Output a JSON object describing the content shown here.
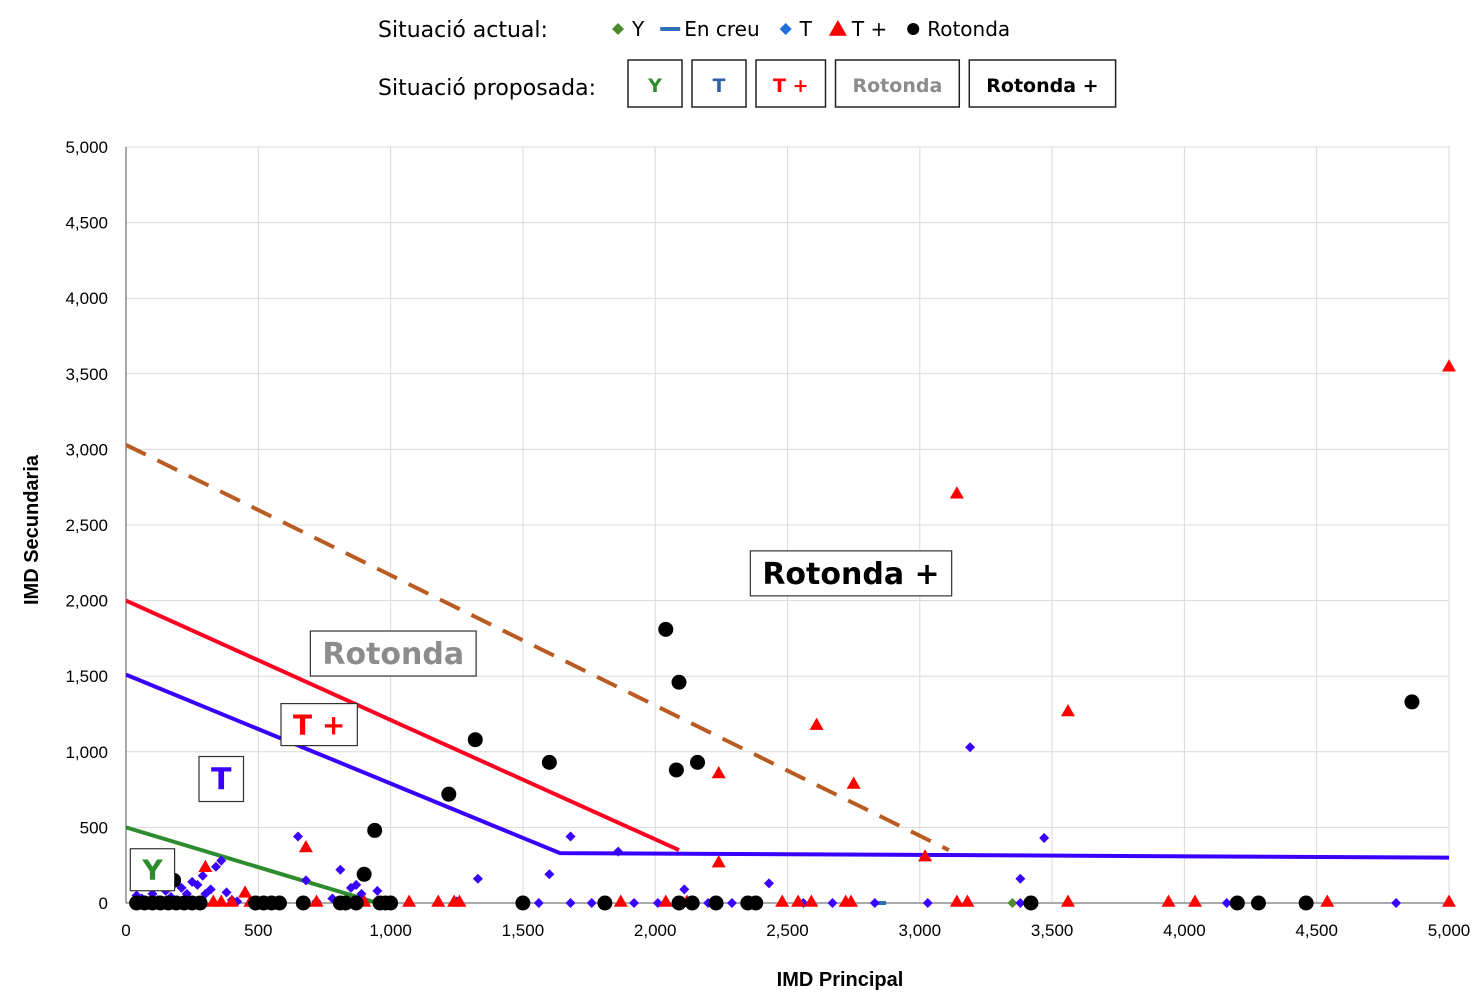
{
  "legend": {
    "current_title": "Situació actual:",
    "current_items": [
      {
        "label": "Y",
        "shape": "diamond",
        "color": "#4e8a2e"
      },
      {
        "label": "En creu",
        "shape": "dash",
        "color": "#2f6fb5"
      },
      {
        "label": "T",
        "shape": "diamond",
        "color": "#1f6fd6"
      },
      {
        "label": "T +",
        "shape": "triangle",
        "color": "#ff0000"
      },
      {
        "label": "Rotonda",
        "shape": "circle",
        "color": "#000000"
      }
    ],
    "proposed_title": "Situació proposada:",
    "proposed_items": [
      {
        "label": "Y",
        "color": "#2e8b2e"
      },
      {
        "label": "T",
        "color": "#2f5fa8"
      },
      {
        "label": "T +",
        "color": "#ff0000"
      },
      {
        "label": "Rotonda",
        "color": "#8c8c8c"
      },
      {
        "label": "Rotonda +",
        "color": "#000000"
      }
    ]
  },
  "chart_data": {
    "type": "scatter",
    "xlabel": "IMD Principal",
    "ylabel": "IMD Secundaria",
    "xlim": [
      0,
      5000
    ],
    "ylim": [
      0,
      5000
    ],
    "xticks": [
      "0",
      "500",
      "1,000",
      "1,500",
      "2,000",
      "2,500",
      "3,000",
      "3,500",
      "4,000",
      "4,500",
      "5,000"
    ],
    "yticks": [
      "0",
      "500",
      "1,000",
      "1,500",
      "2,000",
      "2,500",
      "3,000",
      "3,500",
      "4,000",
      "4,500",
      "5,000"
    ],
    "grid": true,
    "legend_position": "top",
    "series": [
      {
        "name": "Y",
        "marker": "diamond",
        "color": "#4e8a2e",
        "points": [
          [
            3350,
            0
          ],
          [
            4450,
            0
          ]
        ]
      },
      {
        "name": "En creu",
        "marker": "dash",
        "color": "#2f6fb5",
        "points": [
          [
            2850,
            0
          ]
        ]
      },
      {
        "name": "T",
        "marker": "diamond",
        "color": "#3a00ff",
        "points": [
          [
            40,
            50
          ],
          [
            60,
            30
          ],
          [
            80,
            10
          ],
          [
            100,
            60
          ],
          [
            120,
            20
          ],
          [
            150,
            80
          ],
          [
            170,
            40
          ],
          [
            190,
            10
          ],
          [
            210,
            100
          ],
          [
            230,
            60
          ],
          [
            250,
            140
          ],
          [
            270,
            120
          ],
          [
            290,
            180
          ],
          [
            300,
            60
          ],
          [
            320,
            90
          ],
          [
            340,
            240
          ],
          [
            360,
            280
          ],
          [
            380,
            70
          ],
          [
            400,
            20
          ],
          [
            420,
            10
          ],
          [
            650,
            440
          ],
          [
            680,
            150
          ],
          [
            720,
            10
          ],
          [
            780,
            30
          ],
          [
            810,
            220
          ],
          [
            850,
            100
          ],
          [
            870,
            120
          ],
          [
            890,
            60
          ],
          [
            950,
            80
          ],
          [
            1000,
            0
          ],
          [
            1250,
            10
          ],
          [
            1330,
            160
          ],
          [
            1560,
            0
          ],
          [
            1600,
            190
          ],
          [
            1680,
            440
          ],
          [
            1680,
            0
          ],
          [
            1760,
            0
          ],
          [
            1860,
            340
          ],
          [
            1920,
            0
          ],
          [
            2010,
            0
          ],
          [
            2110,
            90
          ],
          [
            2200,
            0
          ],
          [
            2290,
            0
          ],
          [
            2430,
            130
          ],
          [
            2560,
            0
          ],
          [
            2670,
            0
          ],
          [
            2830,
            0
          ],
          [
            3030,
            0
          ],
          [
            3190,
            1030
          ],
          [
            3380,
            160
          ],
          [
            3470,
            430
          ],
          [
            3380,
            0
          ],
          [
            4160,
            0
          ],
          [
            4800,
            0
          ]
        ]
      },
      {
        "name": "T +",
        "marker": "triangle",
        "color": "#ff0000",
        "points": [
          [
            300,
            240
          ],
          [
            330,
            10
          ],
          [
            360,
            10
          ],
          [
            400,
            10
          ],
          [
            450,
            70
          ],
          [
            470,
            10
          ],
          [
            680,
            370
          ],
          [
            720,
            10
          ],
          [
            900,
            10
          ],
          [
            1070,
            10
          ],
          [
            1180,
            10
          ],
          [
            1240,
            10
          ],
          [
            1260,
            10
          ],
          [
            1870,
            10
          ],
          [
            2040,
            10
          ],
          [
            2120,
            10
          ],
          [
            2240,
            270
          ],
          [
            2240,
            860
          ],
          [
            2480,
            10
          ],
          [
            2540,
            10
          ],
          [
            2590,
            10
          ],
          [
            2610,
            1180
          ],
          [
            2720,
            10
          ],
          [
            2740,
            10
          ],
          [
            2750,
            790
          ],
          [
            3020,
            310
          ],
          [
            3140,
            2710
          ],
          [
            3140,
            10
          ],
          [
            3180,
            10
          ],
          [
            3560,
            10
          ],
          [
            3560,
            1270
          ],
          [
            3940,
            10
          ],
          [
            4040,
            10
          ],
          [
            4540,
            10
          ],
          [
            5000,
            10
          ],
          [
            5000,
            3550
          ]
        ]
      },
      {
        "name": "Rotonda",
        "marker": "circle",
        "color": "#000000",
        "points": [
          [
            40,
            0
          ],
          [
            70,
            0
          ],
          [
            100,
            0
          ],
          [
            130,
            0
          ],
          [
            160,
            0
          ],
          [
            180,
            150
          ],
          [
            190,
            0
          ],
          [
            220,
            0
          ],
          [
            250,
            0
          ],
          [
            280,
            0
          ],
          [
            490,
            0
          ],
          [
            520,
            0
          ],
          [
            550,
            0
          ],
          [
            580,
            0
          ],
          [
            670,
            0
          ],
          [
            810,
            0
          ],
          [
            830,
            0
          ],
          [
            870,
            0
          ],
          [
            900,
            190
          ],
          [
            940,
            480
          ],
          [
            960,
            0
          ],
          [
            980,
            0
          ],
          [
            1000,
            0
          ],
          [
            1220,
            720
          ],
          [
            1320,
            1080
          ],
          [
            1500,
            0
          ],
          [
            1600,
            930
          ],
          [
            1810,
            0
          ],
          [
            2040,
            1810
          ],
          [
            2080,
            880
          ],
          [
            2090,
            1460
          ],
          [
            2090,
            0
          ],
          [
            2140,
            0
          ],
          [
            2160,
            930
          ],
          [
            2230,
            0
          ],
          [
            2350,
            0
          ],
          [
            2380,
            0
          ],
          [
            3420,
            0
          ],
          [
            4200,
            0
          ],
          [
            4280,
            0
          ],
          [
            4460,
            0
          ],
          [
            4860,
            1330
          ]
        ]
      }
    ],
    "threshold_lines": [
      {
        "name": "Y",
        "color": "#2e8b2e",
        "style": "solid",
        "points": [
          [
            0,
            500
          ],
          [
            950,
            0
          ]
        ]
      },
      {
        "name": "T",
        "color": "#3a00ff",
        "style": "solid",
        "points": [
          [
            0,
            1510
          ],
          [
            1640,
            330
          ],
          [
            5000,
            300
          ]
        ]
      },
      {
        "name": "T +",
        "color": "#ff0022",
        "style": "solid",
        "points": [
          [
            0,
            2000
          ],
          [
            2090,
            350
          ]
        ]
      },
      {
        "name": "Rotonda +",
        "color": "#b85c22",
        "style": "dashed",
        "points": [
          [
            0,
            3030
          ],
          [
            3110,
            350
          ]
        ]
      }
    ],
    "region_labels": [
      {
        "text": "Y",
        "color": "#2e8b2e",
        "at": [
          100,
          220
        ]
      },
      {
        "text": "T",
        "color": "#3a00ff",
        "at": [
          360,
          820
        ]
      },
      {
        "text": "T +",
        "color": "#ff0000",
        "at": [
          730,
          1180
        ]
      },
      {
        "text": "Rotonda",
        "color": "#8c8c8c",
        "at": [
          1010,
          1650
        ]
      },
      {
        "text": "Rotonda +",
        "color": "#000000",
        "at": [
          2740,
          2180
        ]
      }
    ]
  }
}
